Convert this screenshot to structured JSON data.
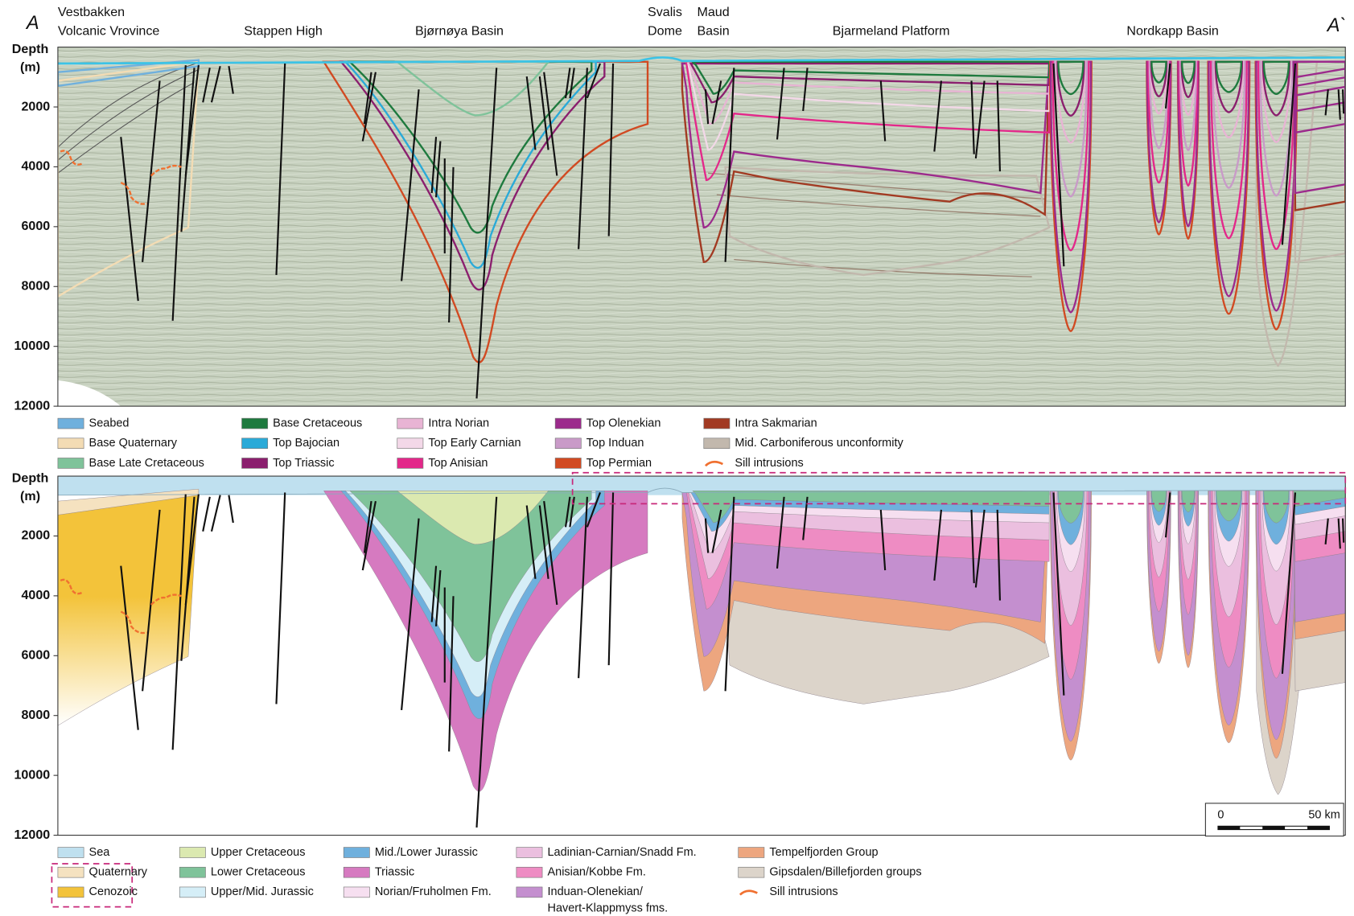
{
  "section": {
    "start": "A",
    "end": "A`"
  },
  "regions": [
    [
      "Vestbakken",
      "Volcanic Vrovince"
    ],
    [
      "Stappen High"
    ],
    [
      "Bjørnøya Basin"
    ],
    [
      "Svalis",
      "Dome"
    ],
    [
      "Maud",
      "Basin"
    ],
    [
      "Bjarmeland Platform"
    ],
    [
      "Nordkapp Basin"
    ]
  ],
  "top_panel": {
    "axis_title": [
      "Depth",
      "(m)"
    ],
    "depth_ticks": [
      2000,
      4000,
      6000,
      8000,
      10000,
      12000
    ],
    "legend": [
      {
        "label": "Seabed",
        "color": "#6fb0dd"
      },
      {
        "label": "Base Quaternary",
        "color": "#f3dcb4"
      },
      {
        "label": "Base Late Cretaceous",
        "color": "#7fc39a"
      },
      {
        "label": "Base Cretaceous",
        "color": "#1e7a3e"
      },
      {
        "label": "Top Bajocian",
        "color": "#2aaad8"
      },
      {
        "label": "Top Triassic",
        "color": "#8b1f6e"
      },
      {
        "label": "Intra Norian",
        "color": "#e8b4d4"
      },
      {
        "label": "Top Early Carnian",
        "color": "#f3d8e8"
      },
      {
        "label": "Top Anisian",
        "color": "#e3288a"
      },
      {
        "label": "Top Olenekian",
        "color": "#9c2a8c"
      },
      {
        "label": "Top Induan",
        "color": "#c99ac8"
      },
      {
        "label": "Top Permian",
        "color": "#d14a22"
      },
      {
        "label": "Intra Sakmarian",
        "color": "#a23a22"
      },
      {
        "label": "Mid. Carboniferous unconformity",
        "color": "#c2b8ad"
      },
      {
        "label": "Sill intrusions",
        "color": "#f07030",
        "style": "line"
      }
    ]
  },
  "bottom_panel": {
    "axis_title": [
      "Depth",
      "(m)"
    ],
    "depth_ticks": [
      2000,
      4000,
      6000,
      8000,
      10000,
      12000
    ],
    "legend": [
      {
        "label": "Sea",
        "color": "#bfe0ef"
      },
      {
        "label": "Quaternary",
        "color": "#f5e2c0"
      },
      {
        "label": "Cenozoic",
        "color": "#f3c33a"
      },
      {
        "label": "Upper Cretaceous",
        "color": "#dbe9b0"
      },
      {
        "label": "Lower Cretaceous",
        "color": "#7fc39a"
      },
      {
        "label": "Upper/Mid. Jurassic",
        "color": "#d5eef7"
      },
      {
        "label": "Mid./Lower Jurassic",
        "color": "#6fb0dd"
      },
      {
        "label": "Triassic",
        "color": "#d67ac0"
      },
      {
        "label": "Norian/Fruholmen Fm.",
        "color": "#f6dff0"
      },
      {
        "label": "Ladinian-Carnian/Snadd Fm.",
        "color": "#ebbfdf"
      },
      {
        "label": "Anisian/Kobbe Fm.",
        "color": "#ee8cc3"
      },
      {
        "label": [
          "Induan-Olenekian/",
          "Havert-Klappmyss fms."
        ],
        "color": "#c48fcf"
      },
      {
        "label": "Tempelfjorden Group",
        "color": "#eda67f"
      },
      {
        "label": "Gipsdalen/Billefjorden groups",
        "color": "#dcd4ca"
      },
      {
        "label": "Sill intrusions",
        "color": "#f07030",
        "style": "line"
      }
    ],
    "scale_bar": [
      "0",
      "50 km"
    ]
  }
}
